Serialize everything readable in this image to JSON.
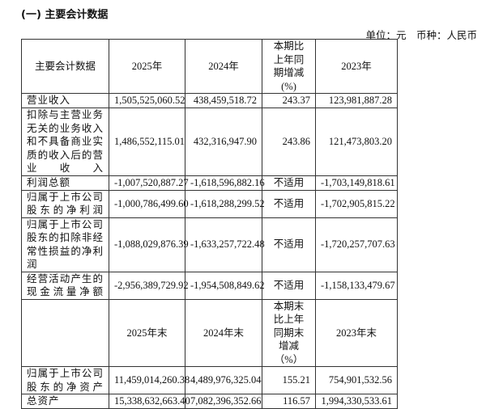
{
  "title": "(一) 主要会计数据",
  "unit": "单位：元　币种：人民币",
  "header": [
    "主要会计数据",
    "2025年",
    "2024年",
    "本期比上年同期增减(%)",
    "2023年"
  ],
  "rows": [
    {
      "label": "营业收入",
      "v2025": "1,505,525,060.52",
      "v2024": "438,459,518.72",
      "chg": "243.37",
      "v2023": "123,981,887.28"
    },
    {
      "label": "扣除与主营业务无关的业务收入和不具备商业实质的收入后的营业收入",
      "v2025": "1,486,552,115.01",
      "v2024": "432,316,947.90",
      "chg": "243.86",
      "v2023": "121,473,803.20"
    },
    {
      "label": "利润总额",
      "v2025": "-1,007,520,887.27",
      "v2024": "-1,618,596,882.16",
      "chg": "不适用",
      "v2023": "-1,703,149,818.61"
    },
    {
      "label": "归属于上市公司股东的净利润",
      "v2025": "-1,000,786,499.60",
      "v2024": "-1,618,288,299.52",
      "chg": "不适用",
      "v2023": "-1,702,905,815.22"
    },
    {
      "label": "归属于上市公司股东的扣除非经常性损益的净利润",
      "v2025": "-1,088,029,876.39",
      "v2024": "-1,633,257,722.48",
      "chg": "不适用",
      "v2023": "-1,720,257,707.63"
    },
    {
      "label": "经营活动产生的现金流量净额",
      "v2025": "-2,956,389,729.92",
      "v2024": "-1,954,508,849.62",
      "chg": "不适用",
      "v2023": "-1,158,133,479.67"
    }
  ],
  "header2": [
    "",
    "2025年末",
    "2024年末",
    "本期末比上年同期末增减（%）",
    "2023年末"
  ],
  "rows2": [
    {
      "label": "归属于上市公司股东的净资产",
      "v2025": "11,459,014,260.38",
      "v2024": "4,489,976,325.04",
      "chg": "155.21",
      "v2023": "754,901,532.56"
    },
    {
      "label": "总资产",
      "v2025": "15,338,632,663.40",
      "v2024": "7,082,396,352.66",
      "chg": "116.57",
      "v2023": "1,994,330,533.61"
    }
  ]
}
